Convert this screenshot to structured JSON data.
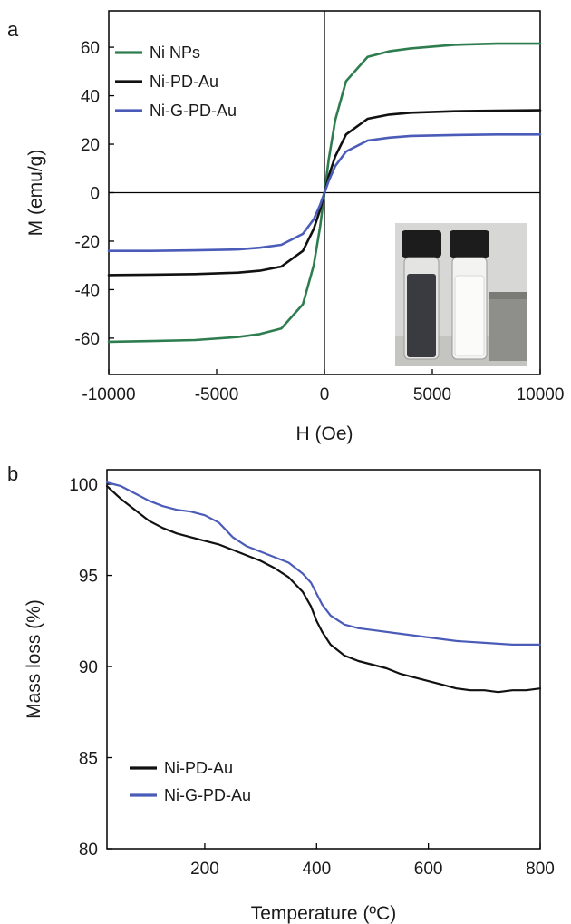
{
  "figure": {
    "panels": [
      {
        "id": "a",
        "label": "a"
      },
      {
        "id": "b",
        "label": "b"
      }
    ]
  },
  "chart_data": [
    {
      "panel": "a",
      "type": "line",
      "xlabel": "H (Oe)",
      "ylabel": "M (emu/g)",
      "xlim": [
        -10000,
        10000
      ],
      "ylim": [
        -75,
        75
      ],
      "xticks": [
        -10000,
        -5000,
        0,
        5000,
        10000
      ],
      "yticks": [
        -60,
        -40,
        -20,
        0,
        20,
        40,
        60
      ],
      "zero_lines": true,
      "legend_position": "top-left",
      "inset": "photograph of two vials, one with dark particles and one clear, next to a magnet",
      "series": [
        {
          "name": "Ni NPs",
          "color": "#2e7d4f",
          "x": [
            -10000,
            -8000,
            -6000,
            -4000,
            -3000,
            -2000,
            -1000,
            -500,
            -200,
            0,
            200,
            500,
            1000,
            2000,
            3000,
            4000,
            6000,
            8000,
            10000
          ],
          "y": [
            -61.5,
            -61.2,
            -60.8,
            -59.5,
            -58.3,
            -56,
            -46,
            -30,
            -14,
            0,
            14,
            30,
            46,
            56,
            58.3,
            59.5,
            61,
            61.5,
            61.5
          ]
        },
        {
          "name": "Ni-PD-Au",
          "color": "#111111",
          "x": [
            -10000,
            -8000,
            -6000,
            -4000,
            -3000,
            -2000,
            -1000,
            -500,
            -200,
            0,
            200,
            500,
            1000,
            2000,
            3000,
            4000,
            6000,
            8000,
            10000
          ],
          "y": [
            -34,
            -33.8,
            -33.6,
            -33,
            -32.2,
            -30.5,
            -24,
            -15,
            -7,
            0,
            7,
            15,
            24,
            30.5,
            32.2,
            33,
            33.6,
            33.8,
            34
          ]
        },
        {
          "name": "Ni-G-PD-Au",
          "color": "#4b5bb8",
          "x": [
            -10000,
            -8000,
            -6000,
            -4000,
            -3000,
            -2000,
            -1000,
            -500,
            -200,
            0,
            200,
            500,
            1000,
            2000,
            3000,
            4000,
            6000,
            8000,
            10000
          ],
          "y": [
            -24,
            -24,
            -23.8,
            -23.4,
            -22.7,
            -21.5,
            -17,
            -11,
            -5,
            0,
            5,
            11,
            17,
            21.5,
            22.7,
            23.4,
            23.8,
            24,
            24
          ]
        }
      ]
    },
    {
      "panel": "b",
      "type": "line",
      "xlabel": "Temperature (ºC)",
      "ylabel": "Mass loss (%)",
      "xlim": [
        25,
        800
      ],
      "ylim": [
        80,
        100.8
      ],
      "xticks": [
        200,
        400,
        600,
        800
      ],
      "yticks": [
        80,
        85,
        90,
        95,
        100
      ],
      "legend_position": "bottom-left",
      "series": [
        {
          "name": "Ni-PD-Au",
          "color": "#111111",
          "x": [
            25,
            50,
            75,
            100,
            125,
            150,
            175,
            200,
            225,
            250,
            275,
            300,
            325,
            350,
            375,
            390,
            400,
            410,
            425,
            450,
            475,
            500,
            525,
            550,
            575,
            600,
            625,
            650,
            675,
            700,
            725,
            750,
            775,
            800
          ],
          "y": [
            99.9,
            99.2,
            98.6,
            98,
            97.6,
            97.3,
            97.1,
            96.9,
            96.7,
            96.4,
            96.1,
            95.8,
            95.4,
            94.9,
            94.1,
            93.3,
            92.5,
            91.9,
            91.2,
            90.6,
            90.3,
            90.1,
            89.9,
            89.6,
            89.4,
            89.2,
            89,
            88.8,
            88.7,
            88.7,
            88.6,
            88.7,
            88.7,
            88.8
          ]
        },
        {
          "name": "Ni-G-PD-Au",
          "color": "#4b5bb8",
          "x": [
            25,
            50,
            75,
            100,
            125,
            150,
            175,
            200,
            225,
            250,
            275,
            300,
            325,
            350,
            375,
            390,
            400,
            410,
            425,
            450,
            475,
            500,
            550,
            600,
            650,
            700,
            750,
            800
          ],
          "y": [
            100.1,
            99.9,
            99.5,
            99.1,
            98.8,
            98.6,
            98.5,
            98.3,
            97.9,
            97.1,
            96.6,
            96.3,
            96,
            95.7,
            95.1,
            94.6,
            94,
            93.4,
            92.8,
            92.3,
            92.1,
            92,
            91.8,
            91.6,
            91.4,
            91.3,
            91.2,
            91.2
          ]
        }
      ]
    }
  ]
}
